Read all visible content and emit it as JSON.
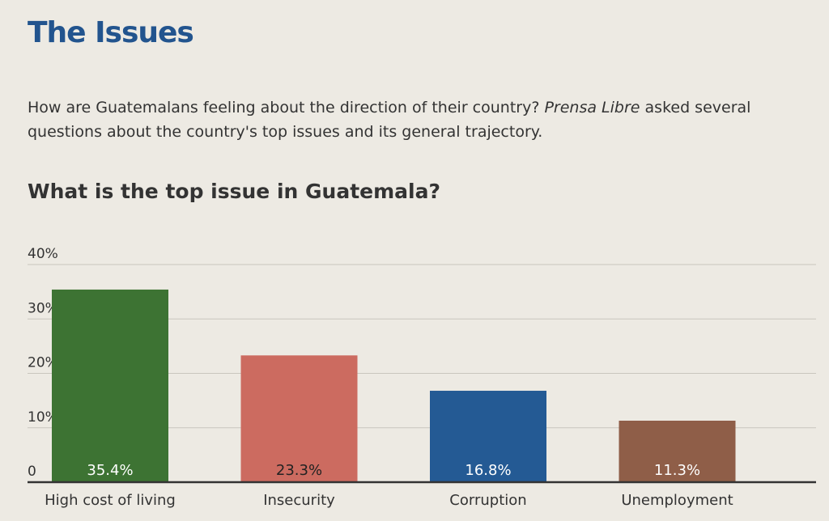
{
  "header": {
    "title": "The Issues",
    "intro_before": "How are Guatemalans feeling about the direction of their country? ",
    "intro_italic": "Prensa Libre",
    "intro_after": " asked several questions about the country's top issues and its general trajectory."
  },
  "chart_data": {
    "type": "bar",
    "title": "What is the top issue in Guatemala?",
    "categories": [
      "High cost of living",
      "Insecurity",
      "Corruption",
      "Unemployment"
    ],
    "values": [
      35.4,
      23.3,
      16.8,
      11.3
    ],
    "value_labels": [
      "35.4%",
      "23.3%",
      "16.8%",
      "11.3%"
    ],
    "colors": [
      "#3d7333",
      "#cc6b60",
      "#245a94",
      "#8f5e48"
    ],
    "value_label_colors": [
      "#ffffff",
      "#222222",
      "#ffffff",
      "#ffffff"
    ],
    "ylim": [
      0,
      40
    ],
    "yticks": [
      0,
      10,
      20,
      30,
      40
    ],
    "ytick_labels": [
      "0",
      "10%",
      "20%",
      "30%",
      "40%"
    ],
    "grid": true,
    "xlabel": "",
    "ylabel": ""
  }
}
